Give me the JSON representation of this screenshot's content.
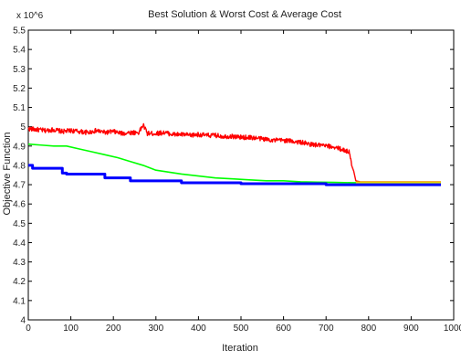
{
  "chart_data": {
    "type": "line",
    "title": "Best Solution & Worst Cost & Average Cost",
    "xlabel": "Iteration",
    "ylabel": "Objective Function",
    "y_multiplier_label": "x 10^6",
    "xlim": [
      0,
      1000
    ],
    "ylim": [
      4.0,
      5.5
    ],
    "x_ticks": [
      0,
      100,
      200,
      300,
      400,
      500,
      600,
      700,
      800,
      900,
      1000
    ],
    "y_ticks": [
      4.0,
      4.1,
      4.2,
      4.3,
      4.4,
      4.5,
      4.6,
      4.7,
      4.8,
      4.9,
      5.0,
      5.1,
      5.2,
      5.3,
      5.4,
      5.5
    ],
    "grid": false,
    "series": [
      {
        "color": "#ff0000",
        "line_width": 1.4,
        "x": [
          0,
          20,
          40,
          60,
          80,
          100,
          120,
          140,
          160,
          180,
          200,
          220,
          240,
          260,
          270,
          280,
          300,
          320,
          340,
          360,
          380,
          400,
          420,
          440,
          460,
          480,
          500,
          520,
          540,
          560,
          580,
          600,
          620,
          640,
          660,
          680,
          700,
          720,
          740,
          755,
          760,
          765,
          770,
          780,
          800,
          850,
          900,
          950,
          970
        ],
        "y": [
          4.99,
          4.985,
          4.98,
          4.985,
          4.975,
          4.98,
          4.975,
          4.97,
          4.98,
          4.97,
          4.975,
          4.965,
          4.97,
          4.97,
          5.01,
          4.965,
          4.965,
          4.97,
          4.96,
          4.96,
          4.955,
          4.96,
          4.955,
          4.955,
          4.95,
          4.95,
          4.945,
          4.945,
          4.94,
          4.935,
          4.93,
          4.93,
          4.925,
          4.92,
          4.91,
          4.905,
          4.9,
          4.895,
          4.88,
          4.87,
          4.8,
          4.77,
          4.72,
          4.715,
          4.715,
          4.715,
          4.715,
          4.715,
          4.715
        ],
        "noise_amplitude": 0.012
      },
      {
        "color": "#00ff00",
        "line_width": 1.6,
        "x": [
          0,
          30,
          60,
          90,
          120,
          150,
          180,
          210,
          240,
          270,
          300,
          330,
          360,
          400,
          440,
          480,
          520,
          560,
          600,
          640,
          680,
          720,
          760,
          800,
          850,
          900,
          950,
          970
        ],
        "y": [
          4.91,
          4.905,
          4.9,
          4.9,
          4.885,
          4.87,
          4.855,
          4.84,
          4.82,
          4.8,
          4.775,
          4.765,
          4.755,
          4.745,
          4.735,
          4.73,
          4.725,
          4.72,
          4.72,
          4.715,
          4.713,
          4.712,
          4.71,
          4.71,
          4.71,
          4.71,
          4.71,
          4.71
        ]
      },
      {
        "color": "#0000ff",
        "line_width": 3,
        "step": true,
        "x": [
          0,
          10,
          80,
          90,
          180,
          240,
          260,
          360,
          500,
          700,
          970
        ],
        "y": [
          4.8,
          4.785,
          4.76,
          4.755,
          4.735,
          4.72,
          4.72,
          4.71,
          4.705,
          4.7,
          4.7
        ]
      },
      {
        "color": "#e8d800",
        "line_width": 2,
        "x": [
          770,
          970
        ],
        "y": [
          4.712,
          4.712
        ]
      }
    ]
  }
}
